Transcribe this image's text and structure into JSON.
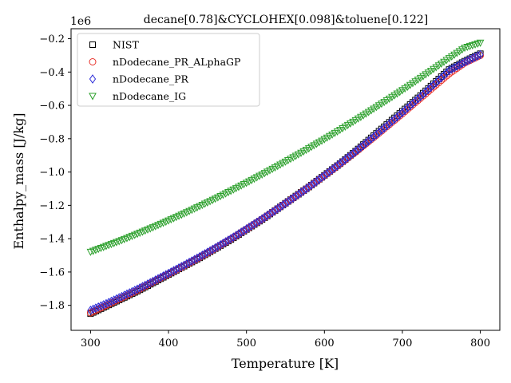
{
  "chart_data": {
    "type": "scatter",
    "title": "decane[0.78]&CYCLOHEX[0.098]&toluene[0.122]",
    "xlabel": "Temperature [K]",
    "ylabel": "Enthalpy_mass [J/kg]",
    "y_offset_label": "1e6",
    "xlim": [
      275,
      825
    ],
    "ylim": [
      -1.95,
      -0.14
    ],
    "y_scale": 1000000,
    "x_ticks": [
      300,
      400,
      500,
      600,
      700,
      800
    ],
    "y_ticks": [
      -1.8,
      -1.6,
      -1.4,
      -1.2,
      -1.0,
      -0.8,
      -0.6,
      -0.4,
      -0.2
    ],
    "grid": false,
    "legend_position": "top-left",
    "series": [
      {
        "name": "NIST",
        "marker": "square",
        "color": "#000000",
        "x": [
          300,
          320,
          340,
          360,
          380,
          400,
          420,
          440,
          460,
          480,
          500,
          520,
          540,
          560,
          580,
          600,
          620,
          640,
          660,
          680,
          700,
          720,
          740,
          760,
          780,
          800
        ],
        "y": [
          -1.85,
          -1.805,
          -1.76,
          -1.715,
          -1.665,
          -1.615,
          -1.565,
          -1.515,
          -1.46,
          -1.405,
          -1.345,
          -1.285,
          -1.22,
          -1.155,
          -1.09,
          -1.02,
          -0.95,
          -0.875,
          -0.795,
          -0.715,
          -0.635,
          -0.555,
          -0.47,
          -0.385,
          -0.335,
          -0.29
        ]
      },
      {
        "name": "nDodecane_PR_ALphaGP",
        "marker": "circle",
        "color": "#e8312a",
        "x": [
          300,
          320,
          340,
          360,
          380,
          400,
          420,
          440,
          460,
          480,
          500,
          520,
          540,
          560,
          580,
          600,
          620,
          640,
          660,
          680,
          700,
          720,
          740,
          760,
          780,
          800
        ],
        "y": [
          -1.845,
          -1.8,
          -1.755,
          -1.71,
          -1.66,
          -1.612,
          -1.563,
          -1.512,
          -1.458,
          -1.402,
          -1.343,
          -1.283,
          -1.22,
          -1.156,
          -1.09,
          -1.022,
          -0.952,
          -0.88,
          -0.805,
          -0.728,
          -0.65,
          -0.57,
          -0.49,
          -0.41,
          -0.345,
          -0.3
        ]
      },
      {
        "name": "nDodecane_PR",
        "marker": "diamond",
        "color": "#2a2ad8",
        "x": [
          300,
          320,
          340,
          360,
          380,
          400,
          420,
          440,
          460,
          480,
          500,
          520,
          540,
          560,
          580,
          600,
          620,
          640,
          660,
          680,
          700,
          720,
          740,
          760,
          780,
          800
        ],
        "y": [
          -1.83,
          -1.79,
          -1.747,
          -1.703,
          -1.656,
          -1.608,
          -1.559,
          -1.508,
          -1.455,
          -1.4,
          -1.342,
          -1.282,
          -1.22,
          -1.156,
          -1.09,
          -1.021,
          -0.95,
          -0.877,
          -0.801,
          -0.723,
          -0.643,
          -0.561,
          -0.477,
          -0.391,
          -0.34,
          -0.295
        ]
      },
      {
        "name": "nDodecane_IG",
        "marker": "triangle-down",
        "color": "#2ca02c",
        "x": [
          300,
          320,
          340,
          360,
          380,
          400,
          420,
          440,
          460,
          480,
          500,
          520,
          540,
          560,
          580,
          600,
          620,
          640,
          660,
          680,
          700,
          720,
          740,
          760,
          780,
          800
        ],
        "y": [
          -1.48,
          -1.445,
          -1.41,
          -1.372,
          -1.333,
          -1.292,
          -1.25,
          -1.206,
          -1.161,
          -1.114,
          -1.066,
          -1.016,
          -0.965,
          -0.913,
          -0.859,
          -0.804,
          -0.748,
          -0.69,
          -0.631,
          -0.571,
          -0.51,
          -0.447,
          -0.383,
          -0.318,
          -0.255,
          -0.225
        ]
      }
    ]
  }
}
